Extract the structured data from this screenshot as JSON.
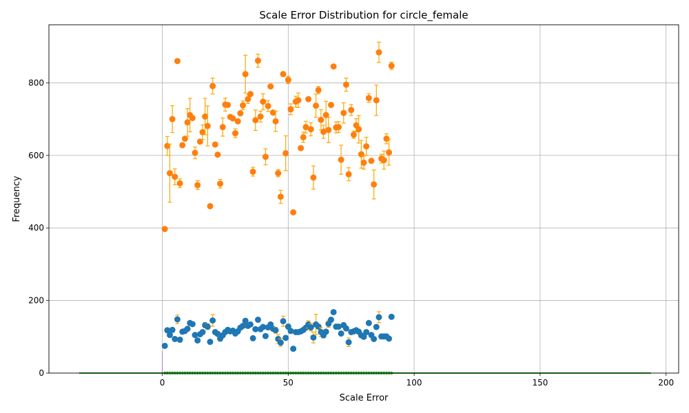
{
  "chart_data": {
    "type": "scatter",
    "title": "Scale Error Distribution for circle_female",
    "xlabel": "Scale Error",
    "ylabel": "Frequency",
    "xlim": [
      -45,
      205
    ],
    "ylim": [
      0,
      960
    ],
    "grid": true,
    "x_ticks": [
      0,
      50,
      100,
      150,
      200
    ],
    "y_ticks": [
      0,
      200,
      400,
      600,
      800
    ],
    "colors": {
      "upper": "#ff7f0e",
      "lower": "#1f77b4",
      "error_bar": "#ffa500",
      "baseline": "#2ca02c",
      "marker_line": "#9467bd",
      "grid": "#b0b0b0"
    },
    "x": [
      1,
      2,
      3,
      4,
      5,
      6,
      7,
      8,
      9,
      10,
      11,
      12,
      13,
      14,
      15,
      16,
      17,
      18,
      19,
      20,
      21,
      22,
      23,
      24,
      25,
      26,
      27,
      28,
      29,
      30,
      31,
      32,
      33,
      34,
      35,
      36,
      37,
      38,
      39,
      40,
      41,
      42,
      43,
      44,
      45,
      46,
      47,
      48,
      49,
      50,
      51,
      52,
      53,
      54,
      55,
      56,
      57,
      58,
      59,
      60,
      61,
      62,
      63,
      64,
      65,
      66,
      67,
      68,
      69,
      70,
      71,
      72,
      73,
      74,
      75,
      76,
      77,
      78,
      79,
      80,
      81,
      82,
      83,
      84,
      85,
      86,
      87,
      88,
      89,
      90,
      91
    ],
    "series": [
      {
        "name": "upper",
        "values": [
          397,
          626,
          551,
          700,
          541,
          860,
          523,
          628,
          646,
          691,
          711,
          703,
          607,
          518,
          638,
          664,
          707,
          681,
          460,
          791,
          630,
          602,
          522,
          678,
          740,
          739,
          706,
          702,
          661,
          694,
          716,
          738,
          824,
          755,
          769,
          555,
          697,
          861,
          707,
          748,
          596,
          736,
          790,
          718,
          694,
          551,
          486,
          824,
          606,
          808,
          727,
          443,
          748,
          752,
          620,
          650,
          678,
          755,
          672,
          539,
          737,
          780,
          698,
          665,
          711,
          670,
          739,
          845,
          677,
          678,
          588,
          717,
          795,
          548,
          725,
          657,
          683,
          672,
          603,
          580,
          625,
          758,
          585,
          520,
          752,
          884,
          591,
          587,
          646,
          608,
          847
        ],
        "errors": [
          0,
          26,
          80,
          37,
          22,
          0,
          12,
          0,
          0,
          38,
          46,
          0,
          16,
          12,
          0,
          20,
          50,
          55,
          0,
          22,
          0,
          0,
          12,
          25,
          18,
          0,
          0,
          0,
          12,
          0,
          0,
          12,
          52,
          12,
          0,
          12,
          28,
          18,
          15,
          22,
          22,
          15,
          0,
          0,
          28,
          10,
          18,
          0,
          48,
          10,
          15,
          0,
          15,
          20,
          0,
          14,
          16,
          0,
          18,
          32,
          32,
          10,
          28,
          18,
          38,
          35,
          0,
          0,
          15,
          15,
          40,
          28,
          18,
          18,
          15,
          10,
          18,
          38,
          38,
          18,
          25,
          12,
          0,
          40,
          42,
          28,
          12,
          25,
          14,
          35,
          10
        ]
      },
      {
        "name": "lower",
        "values": [
          75,
          118,
          105,
          119,
          94,
          148,
          92,
          114,
          116,
          122,
          138,
          135,
          105,
          90,
          107,
          113,
          132,
          128,
          86,
          145,
          113,
          108,
          95,
          104,
          113,
          119,
          115,
          117,
          109,
          115,
          125,
          130,
          144,
          130,
          134,
          96,
          121,
          147,
          121,
          127,
          102,
          126,
          134,
          122,
          118,
          94,
          84,
          143,
          97,
          128,
          116,
          67,
          113,
          113,
          115,
          119,
          125,
          134,
          126,
          98,
          134,
          128,
          113,
          104,
          114,
          136,
          147,
          168,
          128,
          128,
          109,
          132,
          123,
          85,
          113,
          115,
          118,
          114,
          104,
          100,
          113,
          138,
          105,
          94,
          127,
          154,
          101,
          101,
          101,
          95,
          155
        ],
        "errors": [
          0,
          5,
          6,
          6,
          3,
          12,
          5,
          3,
          5,
          6,
          4,
          3,
          4,
          4,
          3,
          4,
          7,
          8,
          3,
          16,
          4,
          4,
          7,
          3,
          3,
          3,
          3,
          4,
          4,
          3,
          4,
          5,
          6,
          6,
          5,
          3,
          4,
          5,
          5,
          4,
          4,
          5,
          6,
          5,
          8,
          12,
          10,
          14,
          3,
          7,
          5,
          3,
          4,
          3,
          3,
          4,
          5,
          10,
          10,
          15,
          28,
          6,
          12,
          7,
          4,
          10,
          6,
          4,
          5,
          5,
          4,
          5,
          5,
          12,
          5,
          3,
          4,
          3,
          4,
          5,
          5,
          4,
          4,
          4,
          6,
          15,
          3,
          3,
          5,
          5,
          3
        ]
      }
    ],
    "baseline": {
      "name": "baseline",
      "x_range": [
        -33,
        194
      ],
      "value": 0
    },
    "marker_line": {
      "x": 0,
      "value": 60
    }
  }
}
